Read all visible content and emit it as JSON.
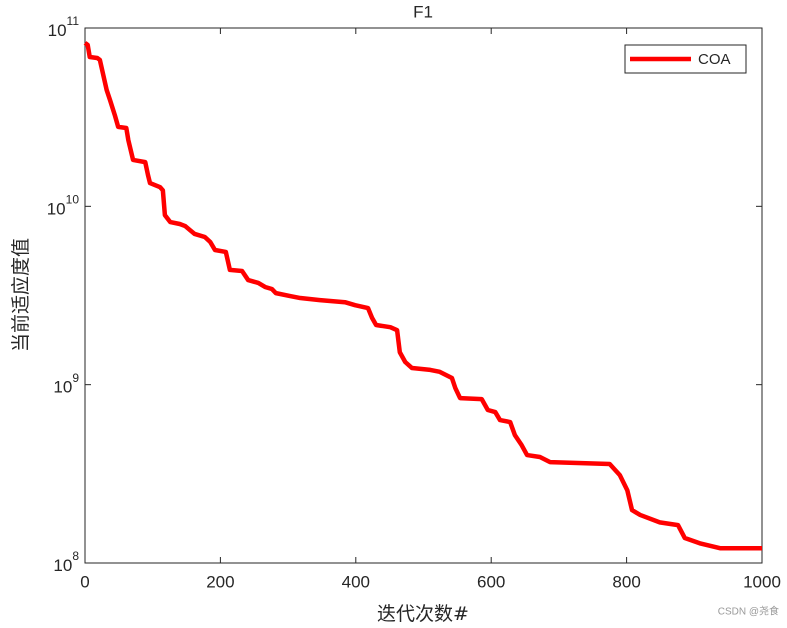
{
  "chart_data": {
    "type": "line",
    "title": "F1",
    "x_label": "迭代次数#",
    "y_label": "当前适应度值",
    "yscale": "log",
    "legend_position": "upper right",
    "watermark": "CSDN @尧食",
    "xlim": [
      0,
      1000
    ],
    "xticks": [
      0,
      200,
      400,
      600,
      800,
      1000
    ],
    "ylim": [
      100000000,
      100000000000
    ],
    "yticks": [
      {
        "value": 100000000,
        "label": "10",
        "exponent": "8"
      },
      {
        "value": 1000000000,
        "label": "10",
        "exponent": "9"
      },
      {
        "value": 10000000000,
        "label": "10",
        "exponent": "10"
      },
      {
        "value": 100000000000,
        "label": "10",
        "exponent": "11"
      }
    ],
    "series": [
      {
        "name": "COA",
        "color": "#ff0000",
        "x": [
          0,
          4,
          7,
          18,
          22,
          27,
          32,
          37,
          44,
          49,
          61,
          64,
          71,
          89,
          93,
          96,
          111,
          115,
          118,
          126,
          140,
          148,
          155,
          162,
          177,
          185,
          192,
          208,
          214,
          232,
          241,
          256,
          266,
          276,
          282,
          303,
          318,
          347,
          384,
          399,
          418,
          424,
          430,
          451,
          461,
          465,
          473,
          483,
          510,
          524,
          542,
          547,
          554,
          586,
          595,
          606,
          613,
          628,
          635,
          645,
          653,
          672,
          687,
          775,
          790,
          801,
          808,
          820,
          849,
          876,
          886,
          908,
          938,
          1000
        ],
        "values": [
          82400000000,
          80300000000,
          68800000000,
          67900000000,
          66200000000,
          54500000000,
          44900000000,
          39400000000,
          32500000000,
          27900000000,
          27500000000,
          23500000000,
          18200000000,
          17700000000,
          15000000000,
          13500000000,
          12800000000,
          12300000000,
          8930000000,
          8160000000,
          7960000000,
          7750000000,
          7360000000,
          7000000000,
          6730000000,
          6310000000,
          5690000000,
          5550000000,
          4400000000,
          4340000000,
          3860000000,
          3720000000,
          3530000000,
          3440000000,
          3260000000,
          3140000000,
          3060000000,
          2980000000,
          2900000000,
          2790000000,
          2690000000,
          2370000000,
          2160000000,
          2100000000,
          2020000000,
          1520000000,
          1340000000,
          1240000000,
          1210000000,
          1180000000,
          1090000000,
          957000000,
          841000000,
          830000000,
          721000000,
          702000000,
          633000000,
          617000000,
          521000000,
          458000000,
          403000000,
          393000000,
          368000000,
          359000000,
          311000000,
          256000000,
          198000000,
          186000000,
          169000000,
          163000000,
          138000000,
          129000000,
          121000000,
          121000000
        ]
      }
    ]
  }
}
